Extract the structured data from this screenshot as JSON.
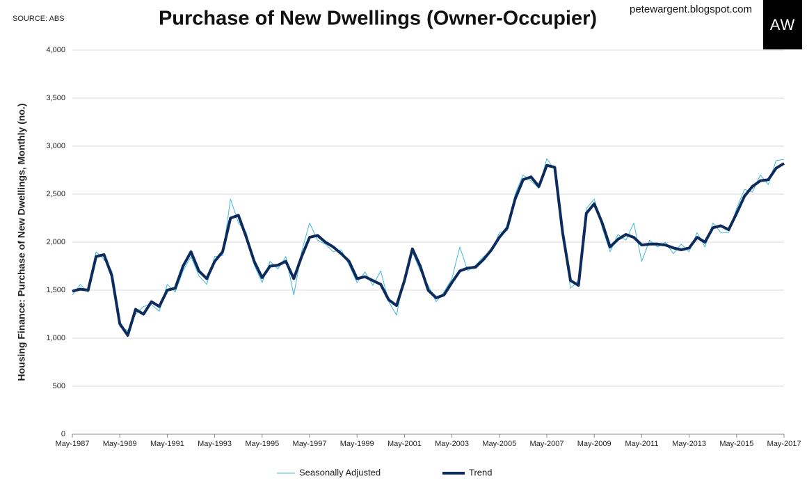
{
  "source": "SOURCE: ABS",
  "site": "petewargent.blogspot.com",
  "logo": "AW",
  "chart_data": {
    "type": "line",
    "title": "Purchase of New Dwellings (Owner-Occupier)",
    "y_label": "Housing Finance: Purchase of New Dwellings, Monthly (no.)",
    "categories": [
      "May-1987",
      null,
      null,
      null,
      null,
      null,
      "May-1989",
      null,
      null,
      null,
      null,
      null,
      "May-1991",
      null,
      null,
      null,
      null,
      null,
      "May-1993",
      null,
      null,
      null,
      null,
      null,
      "May-1995",
      null,
      null,
      null,
      null,
      null,
      "May-1997",
      null,
      null,
      null,
      null,
      null,
      "May-1999",
      null,
      null,
      null,
      null,
      null,
      "May-2001",
      null,
      null,
      null,
      null,
      null,
      "May-2003",
      null,
      null,
      null,
      null,
      null,
      "May-2005",
      null,
      null,
      null,
      null,
      null,
      "May-2007",
      null,
      null,
      null,
      null,
      null,
      "May-2009",
      null,
      null,
      null,
      null,
      null,
      "May-2011",
      null,
      null,
      null,
      null,
      null,
      "May-2013",
      null,
      null,
      null,
      null,
      null,
      "May-2015",
      null,
      null,
      null,
      null,
      null,
      "May-2017"
    ],
    "series": [
      {
        "name": "Seasonally Adjusted",
        "color": "#3fb8dc",
        "width": 1,
        "values": [
          1450,
          1560,
          1480,
          1900,
          1820,
          1700,
          1120,
          1080,
          1250,
          1330,
          1350,
          1280,
          1560,
          1480,
          1700,
          1850,
          1650,
          1560,
          1850,
          1860,
          2450,
          2200,
          2100,
          1760,
          1580,
          1800,
          1720,
          1850,
          1450,
          1900,
          2200,
          2020,
          1980,
          1900,
          1920,
          1760,
          1580,
          1690,
          1550,
          1700,
          1380,
          1240,
          1650,
          1900,
          1700,
          1550,
          1380,
          1480,
          1620,
          1950,
          1700,
          1760,
          1850,
          1900,
          2100,
          2120,
          2500,
          2700,
          2640,
          2560,
          2870,
          2750,
          2050,
          1520,
          1600,
          2350,
          2450,
          2150,
          1900,
          2080,
          2020,
          2200,
          1800,
          2020,
          1950,
          2000,
          1880,
          1980,
          1900,
          2100,
          1950,
          2200,
          2100,
          2100,
          2350,
          2550,
          2520,
          2700,
          2600,
          2850,
          2860
        ]
      },
      {
        "name": "Trend",
        "color": "#0d2b5c",
        "width": 4,
        "values": [
          1490,
          1510,
          1500,
          1850,
          1870,
          1650,
          1150,
          1030,
          1300,
          1250,
          1380,
          1330,
          1500,
          1520,
          1750,
          1900,
          1700,
          1620,
          1800,
          1900,
          2250,
          2280,
          2050,
          1800,
          1630,
          1750,
          1760,
          1800,
          1620,
          1850,
          2050,
          2070,
          2000,
          1950,
          1880,
          1800,
          1620,
          1640,
          1600,
          1560,
          1400,
          1340,
          1600,
          1930,
          1750,
          1500,
          1420,
          1450,
          1580,
          1700,
          1730,
          1740,
          1820,
          1920,
          2050,
          2150,
          2450,
          2650,
          2680,
          2580,
          2800,
          2780,
          2100,
          1600,
          1550,
          2300,
          2400,
          2200,
          1950,
          2030,
          2080,
          2050,
          1970,
          1980,
          1980,
          1970,
          1940,
          1920,
          1940,
          2050,
          2000,
          2150,
          2170,
          2130,
          2300,
          2480,
          2580,
          2640,
          2650,
          2770,
          2820
        ]
      }
    ],
    "ylim": [
      0,
      4000
    ],
    "yticks": [
      0,
      500,
      {
        "value": 1000,
        "label": "1,000"
      },
      {
        "value": 1500,
        "label": "1,500"
      },
      {
        "value": 2000,
        "label": "2,000"
      },
      {
        "value": 2500,
        "label": "2,500"
      },
      {
        "value": 3000,
        "label": "3,000"
      },
      {
        "value": 3500,
        "label": "3,500"
      },
      {
        "value": 4000,
        "label": "4,000"
      }
    ],
    "grid": true,
    "legend": "bottom"
  }
}
